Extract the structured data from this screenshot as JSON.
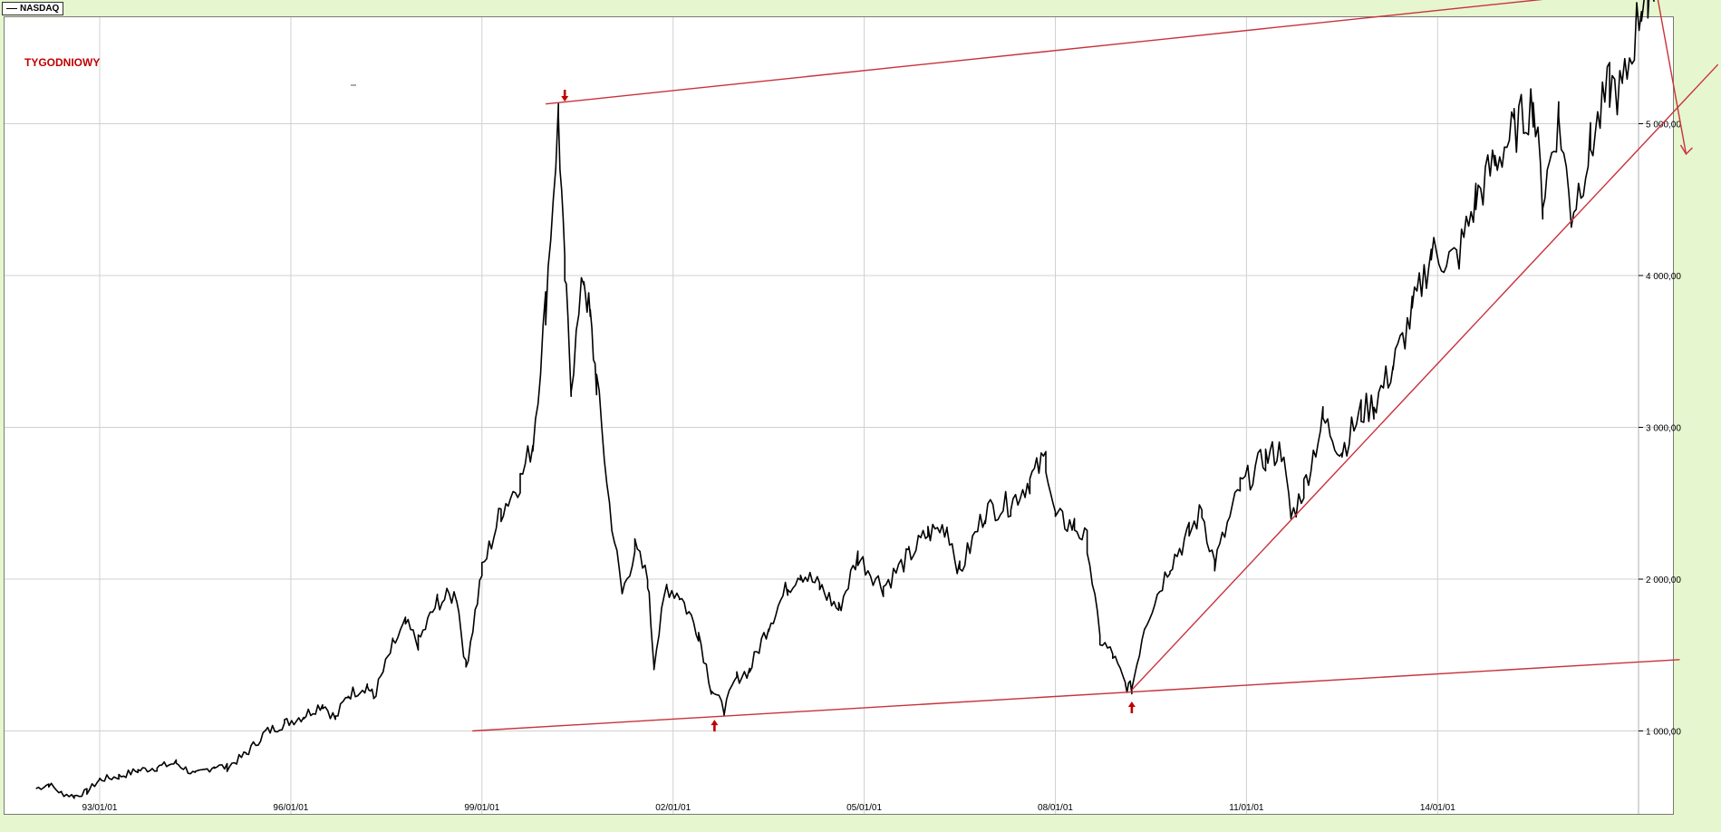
{
  "legend": {
    "label": "NASDAQ",
    "color": "#000000"
  },
  "period_label": "TYGODNIOWY",
  "colors": {
    "background": "#e6f6cf",
    "plot_bg": "#ffffff",
    "grid": "#d0d0d0",
    "price": "#000000",
    "trendline": "#c8323c",
    "marker": "#c00000"
  },
  "chart_data": {
    "type": "line",
    "title": "",
    "xlabel": "",
    "ylabel": "",
    "x_tick_labels": [
      "93/01/01",
      "96/01/01",
      "99/01/01",
      "02/01/01",
      "05/01/01",
      "08/01/01",
      "11/01/01",
      "14/01/01"
    ],
    "x_tick_years": [
      1993,
      1996,
      1999,
      2002,
      2005,
      2008,
      2011,
      2014
    ],
    "y_tick_labels": [
      "1 000,00",
      "2 000,00",
      "3 000,00",
      "4 000,00",
      "5 000,00"
    ],
    "y_tick_values": [
      1000,
      2000,
      3000,
      4000,
      5000
    ],
    "xlim": [
      1992.0,
      2017.8
    ],
    "ylim": [
      400,
      5900
    ],
    "grid": true,
    "series": [
      {
        "name": "NASDAQ",
        "points": [
          [
            1992.0,
            620
          ],
          [
            1992.2,
            650
          ],
          [
            1992.4,
            590
          ],
          [
            1992.6,
            570
          ],
          [
            1992.8,
            600
          ],
          [
            1993.0,
            680
          ],
          [
            1993.3,
            700
          ],
          [
            1993.6,
            740
          ],
          [
            1993.9,
            760
          ],
          [
            1994.2,
            790
          ],
          [
            1994.5,
            710
          ],
          [
            1994.8,
            770
          ],
          [
            1995.0,
            760
          ],
          [
            1995.3,
            850
          ],
          [
            1995.6,
            990
          ],
          [
            1995.9,
            1050
          ],
          [
            1996.2,
            1100
          ],
          [
            1996.5,
            1180
          ],
          [
            1996.7,
            1080
          ],
          [
            1996.9,
            1240
          ],
          [
            1997.2,
            1300
          ],
          [
            1997.3,
            1220
          ],
          [
            1997.6,
            1560
          ],
          [
            1997.8,
            1700
          ],
          [
            1998.0,
            1580
          ],
          [
            1998.3,
            1850
          ],
          [
            1998.6,
            1900
          ],
          [
            1998.75,
            1420
          ],
          [
            1999.0,
            2050
          ],
          [
            1999.3,
            2450
          ],
          [
            1999.6,
            2650
          ],
          [
            1999.8,
            2900
          ],
          [
            2000.0,
            3800
          ],
          [
            2000.2,
            5050
          ],
          [
            2000.3,
            4000
          ],
          [
            2000.4,
            3300
          ],
          [
            2000.6,
            4000
          ],
          [
            2000.7,
            3700
          ],
          [
            2000.8,
            3300
          ],
          [
            2001.0,
            2500
          ],
          [
            2001.2,
            1900
          ],
          [
            2001.4,
            2200
          ],
          [
            2001.6,
            2000
          ],
          [
            2001.7,
            1450
          ],
          [
            2001.9,
            1950
          ],
          [
            2002.1,
            1900
          ],
          [
            2002.4,
            1650
          ],
          [
            2002.6,
            1280
          ],
          [
            2002.8,
            1140
          ],
          [
            2003.0,
            1350
          ],
          [
            2003.2,
            1400
          ],
          [
            2003.5,
            1700
          ],
          [
            2003.8,
            1950
          ],
          [
            2004.0,
            2050
          ],
          [
            2004.3,
            1950
          ],
          [
            2004.6,
            1800
          ],
          [
            2004.9,
            2150
          ],
          [
            2005.3,
            1950
          ],
          [
            2005.7,
            2150
          ],
          [
            2006.0,
            2300
          ],
          [
            2006.3,
            2350
          ],
          [
            2006.5,
            2050
          ],
          [
            2006.9,
            2450
          ],
          [
            2007.3,
            2500
          ],
          [
            2007.6,
            2650
          ],
          [
            2007.85,
            2800
          ],
          [
            2008.0,
            2400
          ],
          [
            2008.3,
            2350
          ],
          [
            2008.5,
            2250
          ],
          [
            2008.7,
            1600
          ],
          [
            2008.9,
            1500
          ],
          [
            2009.1,
            1300
          ],
          [
            2009.2,
            1280
          ],
          [
            2009.4,
            1700
          ],
          [
            2009.8,
            2100
          ],
          [
            2010.1,
            2300
          ],
          [
            2010.3,
            2450
          ],
          [
            2010.5,
            2100
          ],
          [
            2010.9,
            2600
          ],
          [
            2011.3,
            2800
          ],
          [
            2011.55,
            2850
          ],
          [
            2011.7,
            2400
          ],
          [
            2011.9,
            2600
          ],
          [
            2012.2,
            3050
          ],
          [
            2012.5,
            2850
          ],
          [
            2012.8,
            3100
          ],
          [
            2013.0,
            3150
          ],
          [
            2013.3,
            3400
          ],
          [
            2013.6,
            3750
          ],
          [
            2013.9,
            4150
          ],
          [
            2014.3,
            4100
          ],
          [
            2014.6,
            4500
          ],
          [
            2014.9,
            4750
          ],
          [
            2015.2,
            4950
          ],
          [
            2015.5,
            5150
          ],
          [
            2015.65,
            4500
          ],
          [
            2015.9,
            5050
          ],
          [
            2016.1,
            4400
          ],
          [
            2016.4,
            4850
          ],
          [
            2016.7,
            5250
          ],
          [
            2016.9,
            5200
          ],
          [
            2017.2,
            5800
          ],
          [
            2017.3,
            5900
          ],
          [
            2017.4,
            5950
          ]
        ]
      }
    ],
    "annotations": {
      "trendlines": [
        {
          "from": [
            2000.0,
            5130
          ],
          "to": [
            2018.4,
            5940
          ]
        },
        {
          "from": [
            1998.85,
            1000
          ],
          "to": [
            2017.8,
            1470
          ]
        },
        {
          "from": [
            2009.2,
            1270
          ],
          "to": [
            2018.4,
            5390
          ]
        },
        {
          "from": [
            2017.4,
            5950
          ],
          "to": [
            2017.9,
            4800
          ]
        }
      ],
      "arrows_down": [
        [
          2000.3,
          5170
        ],
        [
          2017.4,
          5990
        ]
      ],
      "arrows_up": [
        [
          2002.65,
          1050
        ],
        [
          2009.2,
          1170
        ]
      ]
    }
  }
}
